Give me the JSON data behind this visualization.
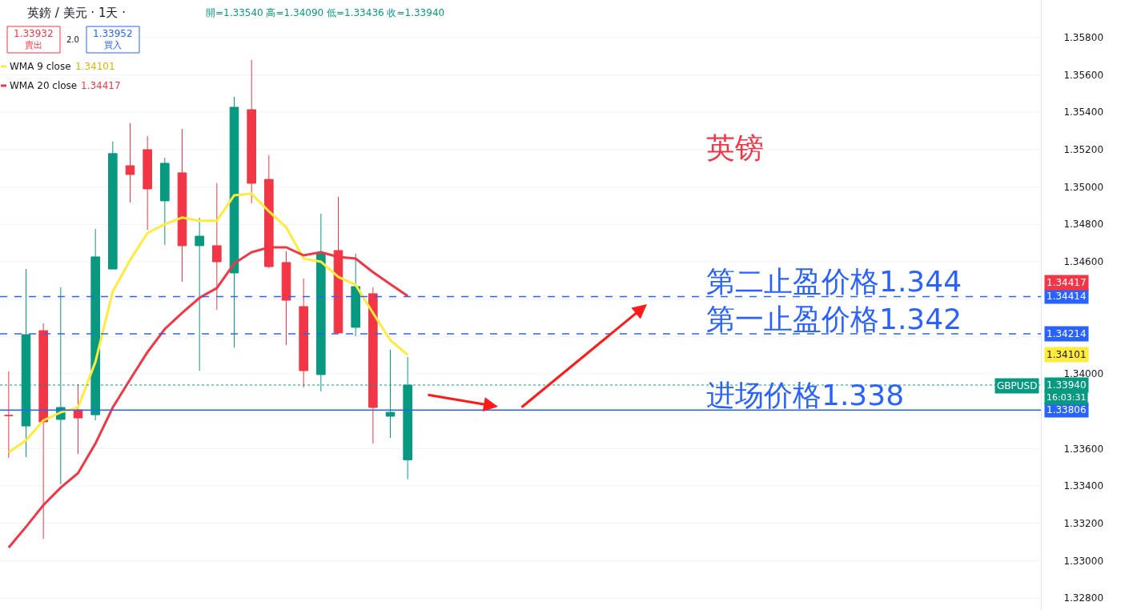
{
  "chart_data": {
    "type": "candlestick",
    "categories": [
      null,
      null,
      null,
      null,
      null,
      null,
      null,
      null,
      null,
      null,
      null,
      null,
      null,
      null,
      null,
      null,
      null,
      null,
      null,
      null,
      null,
      null,
      null,
      null,
      null,
      null,
      null,
      null,
      null,
      null,
      null,
      null,
      null,
      null,
      null,
      null,
      null,
      null,
      null,
      null,
      null,
      null,
      null,
      null,
      null,
      null,
      null,
      null,
      null,
      null,
      null,
      null,
      null,
      null,
      null,
      null,
      null,
      null,
      null,
      null
    ],
    "ohlc": [
      [
        1.33777,
        1.34013,
        1.3355,
        1.33777
      ],
      [
        1.33721,
        1.34561,
        1.33554,
        1.3421
      ],
      [
        1.34231,
        1.3427,
        1.33117,
        1.33743
      ],
      [
        1.33756,
        1.34463,
        1.33409,
        1.3382
      ],
      [
        1.33807,
        1.33944,
        1.33571,
        1.33764
      ],
      [
        1.33781,
        1.34776,
        1.33751,
        1.34626
      ],
      [
        1.34561,
        1.35243,
        1.34561,
        1.35179
      ],
      [
        1.35114,
        1.35341,
        1.34917,
        1.35067
      ],
      [
        1.352,
        1.35273,
        1.34771,
        1.3499
      ],
      [
        1.34926,
        1.35157,
        1.3469,
        1.35127
      ],
      [
        1.35076,
        1.35311,
        1.34493,
        1.34686
      ],
      [
        1.34686,
        1.34836,
        1.34017,
        1.34737
      ],
      [
        1.34686,
        1.3502,
        1.34343,
        1.346
      ],
      [
        1.3454,
        1.35483,
        1.34141,
        1.35427
      ],
      [
        1.35414,
        1.3568,
        1.34913,
        1.3502
      ],
      [
        1.35041,
        1.3517,
        1.34566,
        1.34574
      ],
      [
        1.34596,
        1.34656,
        1.34154,
        1.34394
      ],
      [
        1.3436,
        1.3451,
        1.33927,
        1.34017
      ],
      [
        1.33996,
        1.34857,
        1.33906,
        1.34643
      ],
      [
        1.3466,
        1.34947,
        1.34219,
        1.34219
      ],
      [
        1.34249,
        1.34643,
        1.34201,
        1.34467
      ],
      [
        1.34429,
        1.34463,
        1.33627,
        1.3382
      ],
      [
        1.33773,
        1.34129,
        1.33657,
        1.33794
      ],
      [
        1.3354,
        1.3409,
        1.33436,
        1.3394
      ],
      null,
      null,
      null,
      null,
      null,
      null,
      null,
      null,
      null,
      null,
      null,
      null,
      null,
      null,
      null,
      null,
      null,
      null,
      null,
      null,
      null,
      null,
      null,
      null,
      null,
      null,
      null,
      null,
      null,
      null,
      null,
      null,
      null,
      null,
      null,
      null
    ],
    "colors": [
      "#f23645",
      "#089981",
      "#f23645",
      "#089981",
      "#f23645",
      "#089981",
      "#089981",
      "#f23645",
      "#f23645",
      "#089981",
      "#f23645",
      "#089981",
      "#f23645",
      "#089981",
      "#f23645",
      "#f23645",
      "#f23645",
      "#f23645",
      "#089981",
      "#f23645",
      "#089981",
      "#f23645",
      "#089981",
      "#089981",
      null,
      null,
      null,
      null,
      null,
      null,
      null,
      null,
      null,
      null,
      null,
      null,
      null,
      null,
      null,
      null,
      null,
      null,
      null,
      null,
      null,
      null,
      null,
      null,
      null,
      null,
      null,
      null,
      null,
      null,
      null,
      null,
      null,
      null,
      null,
      null
    ],
    "series": [
      {
        "type": "line",
        "name": "WMA 9 close",
        "color": "#ffeb3b",
        "values": [
          1.3358,
          1.33644,
          1.33751,
          1.33794,
          1.3382,
          1.34064,
          1.34441,
          1.34609,
          1.34754,
          1.34801,
          1.34836,
          1.34819,
          1.34819,
          1.34956,
          1.34964,
          1.3487,
          1.34784,
          1.34617,
          1.346,
          1.34519,
          1.34476,
          1.34326,
          1.3418,
          1.34101,
          null,
          null,
          null,
          null,
          null,
          null,
          null,
          null,
          null,
          null,
          null,
          null,
          null,
          null,
          null,
          null,
          null,
          null,
          null,
          null,
          null,
          null,
          null,
          null,
          null,
          null,
          null,
          null,
          null,
          null,
          null,
          null,
          null,
          null,
          null,
          null
        ]
      },
      {
        "type": "line",
        "name": "WMA 20 close",
        "color": "#f23645",
        "values": [
          1.3307,
          1.33181,
          1.33297,
          1.33391,
          1.33469,
          1.33627,
          1.3382,
          1.3397,
          1.34116,
          1.3424,
          1.34326,
          1.34407,
          1.34459,
          1.34591,
          1.34651,
          1.34677,
          1.34677,
          1.34634,
          1.34651,
          1.34626,
          1.34617,
          1.34544,
          1.3448,
          1.34417,
          null,
          null,
          null,
          null,
          null,
          null,
          null,
          null,
          null,
          null,
          null,
          null,
          null,
          null,
          null,
          null,
          null,
          null,
          null,
          null,
          null,
          null,
          null,
          null,
          null,
          null,
          null,
          null,
          null,
          null,
          null,
          null,
          null,
          null,
          null,
          null
        ]
      }
    ],
    "legend": "top left",
    "ylim": [
      1.32736,
      1.36001
    ],
    "yticks": [
      {
        "value": 1.328,
        "label": "1.32800"
      },
      {
        "value": 1.33,
        "label": "1.33000"
      },
      {
        "value": 1.332,
        "label": "1.33200"
      },
      {
        "value": 1.334,
        "label": "1.33400"
      },
      {
        "value": 1.336,
        "label": "1.33600"
      },
      {
        "value": 1.338,
        "label": null
      },
      {
        "value": 1.34,
        "label": "1.34000"
      },
      {
        "value": 1.342,
        "label": null
      },
      {
        "value": 1.344,
        "label": null
      },
      {
        "value": 1.346,
        "label": "1.34600"
      },
      {
        "value": 1.348,
        "label": "1.34800"
      },
      {
        "value": 1.35,
        "label": "1.35000"
      },
      {
        "value": 1.352,
        "label": "1.35200"
      },
      {
        "value": 1.354,
        "label": "1.35400"
      },
      {
        "value": 1.356,
        "label": "1.35600"
      },
      {
        "value": 1.358,
        "label": "1.35800"
      }
    ],
    "ref_lines": [
      {
        "axis": "y",
        "value": 1.34414,
        "label": "1.34414",
        "color": "#2962ff",
        "line_style": "dashed"
      },
      {
        "axis": "y",
        "value": 1.34214,
        "label": "1.34214",
        "color": "#2962ff",
        "line_style": "dashed"
      },
      {
        "axis": "y",
        "value": 1.33806,
        "label": "1.33806",
        "color": "#2962ff",
        "line_style": "solid"
      },
      {
        "axis": "y",
        "value": 1.3394,
        "label": "1.33940",
        "color": "#089981",
        "line_style": "dotted"
      }
    ],
    "annotations": [
      "英鎊 / 美元 · 1天 ·",
      "開=1.33540 高=1.34090 低=1.33436 收=1.33940",
      "1.33932",
      "賣出",
      "2.0",
      "1.33952",
      "買入",
      "1.34101",
      "1.34417",
      "英镑",
      {
        "text": "第二止盈价格1.344",
        "y": 1.34414
      },
      {
        "text": "第一止盈价格1.342",
        "y": 1.34214
      },
      {
        "text": "进场价格1.338",
        "y": 1.33806
      },
      "1.34417",
      "1.34101",
      "GBPUSD",
      "16:03:31"
    ],
    "grid": "y",
    "tick_labels": "y"
  }
}
